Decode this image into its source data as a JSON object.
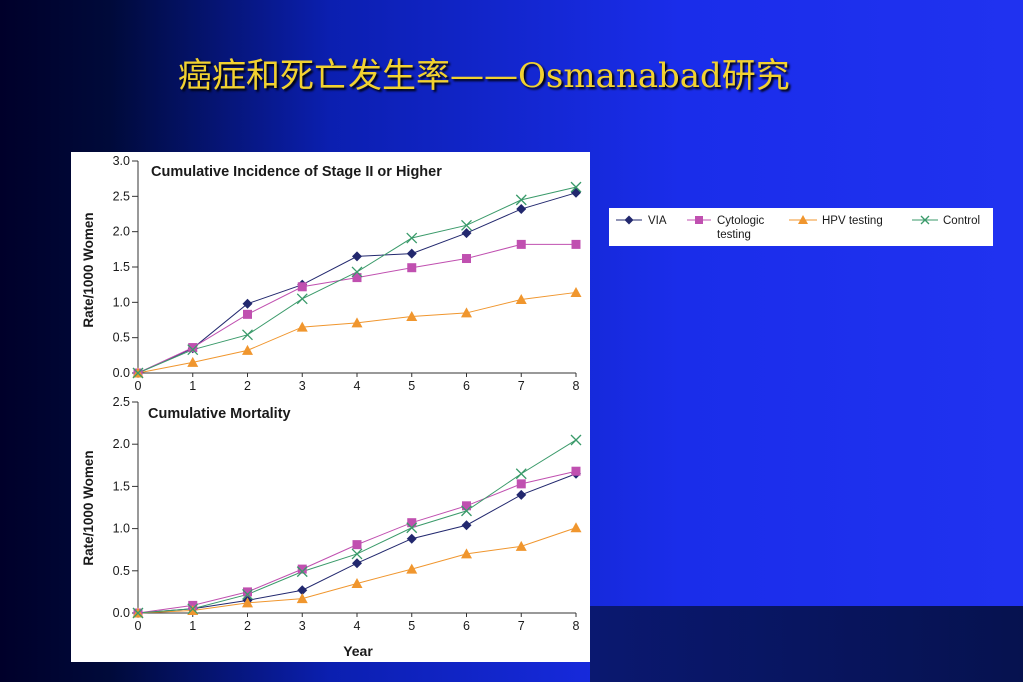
{
  "slide": {
    "title": "癌症和死亡发生率——Osmanabad研究"
  },
  "legend": {
    "entries": [
      {
        "label_line1": "VIA",
        "label_line2": ""
      },
      {
        "label_line1": "Cytologic",
        "label_line2": "testing"
      },
      {
        "label_line1": "HPV testing",
        "label_line2": ""
      },
      {
        "label_line1": "Control",
        "label_line2": ""
      }
    ]
  },
  "chart_data": [
    {
      "type": "line",
      "title": "Cumulative Incidence of Stage II or Higher",
      "xlabel": "",
      "ylabel": "Rate/1000 Women",
      "x": [
        0,
        1,
        2,
        3,
        4,
        5,
        6,
        7,
        8
      ],
      "xlim": [
        0,
        8
      ],
      "ylim": [
        0.0,
        3.0
      ],
      "yticks": [
        "0.0",
        "0.5",
        "1.0",
        "1.5",
        "2.0",
        "2.5",
        "3.0"
      ],
      "xticks": [
        "0",
        "1",
        "2",
        "3",
        "4",
        "5",
        "6",
        "7",
        "8"
      ],
      "grid": false,
      "legend_position": "right, outside",
      "series": [
        {
          "name": "VIA",
          "marker": "diamond",
          "color": "#22286e",
          "values": [
            0.0,
            0.35,
            0.98,
            1.25,
            1.65,
            1.69,
            1.98,
            2.32,
            2.55
          ]
        },
        {
          "name": "Cytologic testing",
          "marker": "square",
          "color": "#c050b0",
          "values": [
            0.0,
            0.36,
            0.83,
            1.22,
            1.35,
            1.49,
            1.62,
            1.82,
            1.82
          ]
        },
        {
          "name": "HPV testing",
          "marker": "triangle",
          "color": "#f0962e",
          "values": [
            0.0,
            0.15,
            0.32,
            0.65,
            0.71,
            0.8,
            0.85,
            1.04,
            1.14
          ]
        },
        {
          "name": "Control",
          "marker": "x",
          "color": "#3a9a6a",
          "values": [
            0.0,
            0.33,
            0.54,
            1.05,
            1.43,
            1.91,
            2.09,
            2.45,
            2.63
          ]
        }
      ]
    },
    {
      "type": "line",
      "title": "Cumulative Mortality",
      "xlabel": "Year",
      "ylabel": "Rate/1000 Women",
      "x": [
        0,
        1,
        2,
        3,
        4,
        5,
        6,
        7,
        8
      ],
      "xlim": [
        0,
        8
      ],
      "ylim": [
        0.0,
        2.5
      ],
      "yticks": [
        "0.0",
        "0.5",
        "1.0",
        "1.5",
        "2.0",
        "2.5"
      ],
      "xticks": [
        "0",
        "1",
        "2",
        "3",
        "4",
        "5",
        "6",
        "7",
        "8"
      ],
      "grid": false,
      "legend_position": "right, outside",
      "series": [
        {
          "name": "VIA",
          "marker": "diamond",
          "color": "#22286e",
          "values": [
            0.0,
            0.05,
            0.15,
            0.27,
            0.59,
            0.88,
            1.04,
            1.4,
            1.65
          ]
        },
        {
          "name": "Cytologic testing",
          "marker": "square",
          "color": "#c050b0",
          "values": [
            0.0,
            0.09,
            0.25,
            0.52,
            0.81,
            1.07,
            1.27,
            1.53,
            1.68
          ]
        },
        {
          "name": "HPV testing",
          "marker": "triangle",
          "color": "#f0962e",
          "values": [
            0.0,
            0.03,
            0.12,
            0.17,
            0.35,
            0.52,
            0.7,
            0.79,
            1.01
          ]
        },
        {
          "name": "Control",
          "marker": "x",
          "color": "#3a9a6a",
          "values": [
            0.0,
            0.05,
            0.22,
            0.49,
            0.7,
            1.01,
            1.21,
            1.65,
            2.05
          ]
        }
      ]
    }
  ]
}
